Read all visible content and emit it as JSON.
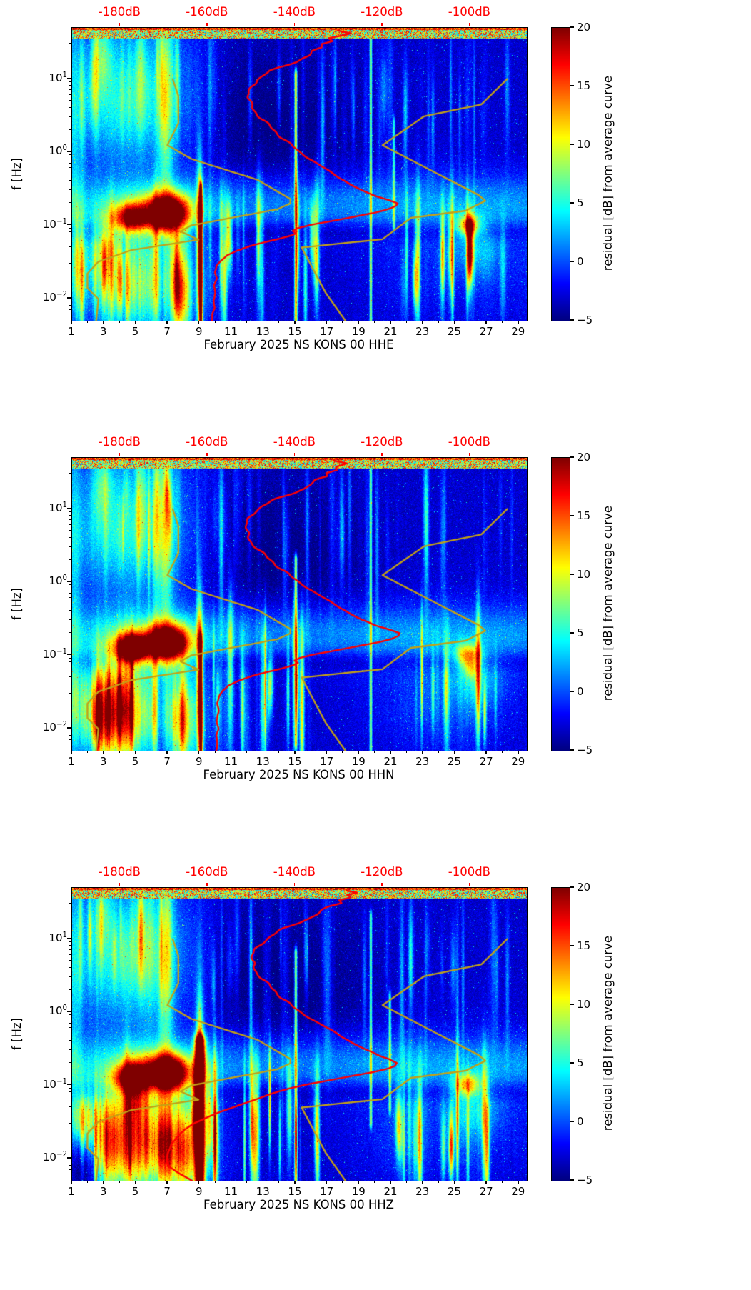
{
  "colors": {
    "background": "#ffffff",
    "axis": "#000000",
    "curve_red": "#ff0000",
    "curve_olive": "#c3a116",
    "db_axis_label_color": "#ff0000"
  },
  "colorbar": {
    "label": "residual [dB] from average curve",
    "tick_labels": [
      "20",
      "15",
      "10",
      "5",
      "0",
      "−5"
    ],
    "tick_values": [
      20,
      15,
      10,
      5,
      0,
      -5
    ],
    "vmin": -5,
    "vmax": 20,
    "colormap": "jet"
  },
  "axes": {
    "ylabel": "f [Hz]",
    "x_tick_labels": [
      "1",
      "3",
      "5",
      "7",
      "9",
      "11",
      "13",
      "15",
      "17",
      "19",
      "21",
      "23",
      "25",
      "27",
      "29"
    ],
    "y_tick_exponents": [
      "1",
      "0",
      "−1",
      "−2"
    ],
    "x_range_days": [
      1,
      29.5
    ],
    "f_range_hz": [
      0.005,
      50
    ],
    "db_axis": {
      "tick_labels": [
        "-180dB",
        "-160dB",
        "-140dB",
        "-120dB",
        "-100dB"
      ],
      "tick_values": [
        -180,
        -160,
        -140,
        -120,
        -100
      ],
      "range_db": [
        -191,
        -87
      ]
    }
  },
  "overlay_curves": {
    "olive_left_db_vs_hz": [
      [
        10,
        -168.0
      ],
      [
        5.9,
        -166.7
      ],
      [
        2.5,
        -166.7
      ],
      [
        1.25,
        -169.2
      ],
      [
        0.81,
        -163.7
      ],
      [
        0.42,
        -148.6
      ],
      [
        0.23,
        -141.1
      ],
      [
        0.2,
        -141.1
      ],
      [
        0.167,
        -144.0
      ],
      [
        0.1,
        -163.8
      ],
      [
        0.083,
        -166.2
      ],
      [
        0.064,
        -162.1
      ],
      [
        0.046,
        -177.5
      ],
      [
        0.032,
        -185.0
      ],
      [
        0.022,
        -187.5
      ],
      [
        0.014,
        -187.5
      ],
      [
        0.0099,
        -185.0
      ],
      [
        0.005,
        -185.5
      ]
    ],
    "olive_right_db_vs_hz": [
      [
        10,
        -91.5
      ],
      [
        4.5,
        -97.4
      ],
      [
        3.1,
        -110.5
      ],
      [
        1.25,
        -120.0
      ],
      [
        0.26,
        -98.0
      ],
      [
        0.217,
        -96.5
      ],
      [
        0.159,
        -101.0
      ],
      [
        0.127,
        -113.5
      ],
      [
        0.065,
        -120.0
      ],
      [
        0.05,
        -138.5
      ],
      [
        0.012,
        -133.0
      ],
      [
        0.005,
        -128.5
      ]
    ]
  },
  "heatmap_render": {
    "features": [
      {
        "d": 4.6,
        "dw": 3.0,
        "l": 0.95,
        "lw": 0.8,
        "a": 5.5
      },
      {
        "d": 4.2,
        "dw": 2.4,
        "l": 0.55,
        "lw": 0.5,
        "a": 3
      },
      {
        "d": 6.85,
        "dw": 0.35,
        "l": 0.75,
        "lw": 1.05,
        "a": 8.5
      },
      {
        "d": 5.3,
        "dw": 0.22,
        "l": 1.15,
        "lw": 0.65,
        "a": 5
      },
      {
        "d": 2.9,
        "dw": 0.45,
        "l": 1.35,
        "lw": 0.35,
        "a": 5
      },
      {
        "d": 1.15,
        "dw": 0.3,
        "l": 0.2,
        "lw": 1.6,
        "a": 4
      },
      {
        "d": 15,
        "dw": 40,
        "l": -0.72,
        "lw": 0.3,
        "a": 5
      },
      {
        "d": 15,
        "dw": 40,
        "l": -1.08,
        "lw": 0.1,
        "a": -2
      },
      {
        "d": 4.7,
        "dw": 0.7,
        "l": -0.9,
        "lw": 0.13,
        "a": 16
      },
      {
        "d": 7.0,
        "dw": 0.9,
        "l": -0.83,
        "lw": 0.17,
        "a": 24
      },
      {
        "d": 6.0,
        "dw": 1.9,
        "l": -0.86,
        "lw": 0.25,
        "a": 6
      },
      {
        "d": 25.8,
        "dw": 0.55,
        "l": -1.0,
        "lw": 0.11,
        "a": 11.5
      },
      {
        "d": 5.0,
        "dw": 2.6,
        "l": -1.78,
        "lw": 0.5,
        "a": 11,
        "s": 1
      },
      {
        "d": 3.0,
        "dw": 0.4,
        "l": -1.85,
        "lw": 0.5,
        "a": 7,
        "s": 1
      },
      {
        "d": 7.9,
        "dw": 0.5,
        "l": -1.95,
        "lw": 0.45,
        "a": 7,
        "s": 1
      },
      {
        "d": 2.0,
        "dw": 1.0,
        "l": -1.5,
        "lw": 0.4,
        "a": 6,
        "s": 1
      },
      {
        "d": 9.0,
        "dw": 0.13,
        "l": -1.4,
        "lw": 0.85,
        "a": 18
      },
      {
        "d": 15.5,
        "dw": 3.0,
        "l": 0.25,
        "lw": 0.85,
        "a": -1.8
      },
      {
        "d": 11.5,
        "dw": 1.6,
        "l": 0.5,
        "lw": 0.9,
        "a": -1.3
      },
      {
        "d": 24.8,
        "dw": 3.8,
        "l": -1.6,
        "lw": 0.5,
        "a": 2.5,
        "s": 1
      },
      {
        "d": 26.3,
        "dw": 1.2,
        "l": -1.35,
        "lw": 0.25,
        "a": 4
      }
    ],
    "stripe_zones": [
      {
        "d0": 9.4,
        "d1": 16.6,
        "l": -1.5,
        "lw": 0.55,
        "n": 22,
        "amax": 15
      },
      {
        "d0": 21.4,
        "d1": 28.3,
        "l": -1.55,
        "lw": 0.5,
        "n": 16,
        "amax": 13
      },
      {
        "d0": 8.6,
        "d1": 28.6,
        "l": 0.7,
        "lw": 0.6,
        "n": 44,
        "amax": 4.5
      },
      {
        "d0": 1.2,
        "d1": 8.4,
        "l": 1.0,
        "lw": 0.55,
        "n": 18,
        "amax": 6
      },
      {
        "d0": 1.2,
        "d1": 9.2,
        "l": -1.7,
        "lw": 0.5,
        "n": 14,
        "amax": 10
      }
    ]
  },
  "chart_data": [
    {
      "type": "heatmap",
      "xlabel": "February 2025 NS KONS 00 HHE",
      "ylabel": "f [Hz]",
      "colorbar_label": "residual [dB] from average curve",
      "x_range_days": [
        1,
        29.5
      ],
      "f_range_hz": [
        0.005,
        50
      ],
      "residual_range_db": [
        -5,
        20
      ],
      "db_axis_tick_values": [
        -180,
        -160,
        -140,
        -120,
        -100
      ],
      "seed": 101,
      "red_curve_db_vs_hz": [
        [
          46,
          -130
        ],
        [
          42,
          -127.5
        ],
        [
          39,
          -130
        ],
        [
          36,
          -132.5
        ],
        [
          33,
          -131.5
        ],
        [
          30,
          -134
        ],
        [
          27,
          -133.5
        ],
        [
          24,
          -136
        ],
        [
          21,
          -137
        ],
        [
          19,
          -138.5
        ],
        [
          17,
          -140
        ],
        [
          15,
          -142.5
        ],
        [
          13,
          -145.5
        ],
        [
          11,
          -147.5
        ],
        [
          9.5,
          -149
        ],
        [
          8,
          -149.8
        ],
        [
          6.8,
          -150.4
        ],
        [
          5.6,
          -150.7
        ],
        [
          4.6,
          -150.3
        ],
        [
          3.8,
          -149.4
        ],
        [
          3.1,
          -148.2
        ],
        [
          2.5,
          -146.6
        ],
        [
          2.0,
          -144.9
        ],
        [
          1.6,
          -143
        ],
        [
          1.3,
          -141.2
        ],
        [
          1.05,
          -139.4
        ],
        [
          0.85,
          -137.2
        ],
        [
          0.68,
          -134.6
        ],
        [
          0.55,
          -132.2
        ],
        [
          0.44,
          -129.6
        ],
        [
          0.36,
          -127.2
        ],
        [
          0.3,
          -124.8
        ],
        [
          0.255,
          -121.8
        ],
        [
          0.225,
          -118.8
        ],
        [
          0.2,
          -116.4
        ],
        [
          0.185,
          -116.8
        ],
        [
          0.17,
          -118.4
        ],
        [
          0.15,
          -121.8
        ],
        [
          0.132,
          -126.4
        ],
        [
          0.115,
          -131.6
        ],
        [
          0.102,
          -136.2
        ],
        [
          0.092,
          -139.4
        ],
        [
          0.084,
          -140.6
        ],
        [
          0.078,
          -139.8
        ],
        [
          0.073,
          -140.9
        ],
        [
          0.066,
          -143.6
        ],
        [
          0.059,
          -147
        ],
        [
          0.052,
          -150.4
        ],
        [
          0.045,
          -153.4
        ],
        [
          0.039,
          -155.6
        ],
        [
          0.033,
          -157
        ],
        [
          0.028,
          -157.9
        ],
        [
          0.023,
          -158.3
        ],
        [
          0.019,
          -158
        ],
        [
          0.015,
          -158.5
        ],
        [
          0.012,
          -158.2
        ],
        [
          0.0095,
          -158.7
        ],
        [
          0.0075,
          -158.4
        ],
        [
          0.006,
          -158.9
        ],
        [
          0.005,
          -159.1
        ]
      ],
      "features_extra": [
        {
          "d": 25.9,
          "dw": 0.25,
          "l": -1.02,
          "lw": 0.07,
          "a": 5
        },
        {
          "d": 3.1,
          "dw": 0.5,
          "l": -1.3,
          "lw": 0.3,
          "a": 6
        }
      ],
      "thin_lines": [
        {
          "d": 9.05,
          "a": 16,
          "l0": -2.31,
          "l1": -0.5,
          "w": 1.4
        },
        {
          "d": 15.0,
          "a": 17,
          "l0": -2.31,
          "l1": 1.05,
          "w": 1.4
        },
        {
          "d": 19.7,
          "a": 13,
          "l0": -2.31,
          "l1": 1.6,
          "w": 1.2
        },
        {
          "d": 21.15,
          "a": 8,
          "l0": -1.0,
          "l1": 0.4,
          "w": 1.2
        }
      ]
    },
    {
      "type": "heatmap",
      "xlabel": "February 2025 NS KONS 00 HHN",
      "ylabel": "f [Hz]",
      "colorbar_label": "residual [dB] from average curve",
      "x_range_days": [
        1,
        29.5
      ],
      "f_range_hz": [
        0.005,
        50
      ],
      "residual_range_db": [
        -5,
        20
      ],
      "db_axis_tick_values": [
        -180,
        -160,
        -140,
        -120,
        -100
      ],
      "seed": 202,
      "red_curve_db_vs_hz": [
        [
          46,
          -131
        ],
        [
          42,
          -128.5
        ],
        [
          38,
          -131
        ],
        [
          34,
          -130.5
        ],
        [
          31,
          -133
        ],
        [
          28,
          -132.5
        ],
        [
          25,
          -135
        ],
        [
          22,
          -136.5
        ],
        [
          19,
          -138
        ],
        [
          16,
          -141
        ],
        [
          13.5,
          -144.5
        ],
        [
          11,
          -147.5
        ],
        [
          9,
          -149.5
        ],
        [
          7.5,
          -150.5
        ],
        [
          6.2,
          -151
        ],
        [
          5.1,
          -151.2
        ],
        [
          4.2,
          -150.8
        ],
        [
          3.4,
          -149.8
        ],
        [
          2.75,
          -148.3
        ],
        [
          2.2,
          -146.5
        ],
        [
          1.75,
          -144.4
        ],
        [
          1.4,
          -142.3
        ],
        [
          1.12,
          -140.3
        ],
        [
          0.9,
          -138
        ],
        [
          0.72,
          -135.4
        ],
        [
          0.58,
          -132.8
        ],
        [
          0.47,
          -130.2
        ],
        [
          0.38,
          -127.6
        ],
        [
          0.31,
          -125
        ],
        [
          0.26,
          -121.8
        ],
        [
          0.228,
          -118.6
        ],
        [
          0.202,
          -116
        ],
        [
          0.186,
          -116.2
        ],
        [
          0.17,
          -117.8
        ],
        [
          0.152,
          -121
        ],
        [
          0.134,
          -125.6
        ],
        [
          0.117,
          -130.8
        ],
        [
          0.103,
          -135.6
        ],
        [
          0.093,
          -138.8
        ],
        [
          0.085,
          -140.2
        ],
        [
          0.079,
          -139.4
        ],
        [
          0.073,
          -140.6
        ],
        [
          0.066,
          -143.2
        ],
        [
          0.059,
          -146.6
        ],
        [
          0.052,
          -150
        ],
        [
          0.045,
          -153
        ],
        [
          0.039,
          -155.2
        ],
        [
          0.033,
          -156.6
        ],
        [
          0.027,
          -157.4
        ],
        [
          0.022,
          -157.8
        ],
        [
          0.017,
          -157.5
        ],
        [
          0.013,
          -157.9
        ],
        [
          0.01,
          -157.6
        ],
        [
          0.008,
          -158
        ],
        [
          0.0063,
          -157.7
        ],
        [
          0.005,
          -158.1
        ]
      ],
      "features_extra": [
        {
          "d": 2.3,
          "dw": 0.8,
          "l": -1.9,
          "lw": 0.4,
          "a": 8,
          "s": 1
        },
        {
          "d": 26.0,
          "dw": 0.3,
          "l": -1.18,
          "lw": 0.1,
          "a": 6
        },
        {
          "d": 4.9,
          "dw": 0.6,
          "l": -0.92,
          "lw": 0.12,
          "a": 8
        }
      ],
      "thin_lines": [
        {
          "d": 9.05,
          "a": 13,
          "l0": -2.31,
          "l1": -0.8,
          "w": 1.4
        },
        {
          "d": 15.0,
          "a": 15,
          "l0": -2.2,
          "l1": 0.3,
          "w": 1.4
        },
        {
          "d": 19.7,
          "a": 12,
          "l0": -2.31,
          "l1": 1.5,
          "w": 1.2
        }
      ]
    },
    {
      "type": "heatmap",
      "xlabel": "February 2025 NS KONS 00 HHZ",
      "ylabel": "f [Hz]",
      "colorbar_label": "residual [dB] from average curve",
      "x_range_days": [
        1,
        29.5
      ],
      "f_range_hz": [
        0.005,
        50
      ],
      "residual_range_db": [
        -5,
        20
      ],
      "db_axis_tick_values": [
        -180,
        -160,
        -140,
        -120,
        -100
      ],
      "seed": 303,
      "red_curve_db_vs_hz": [
        [
          46,
          -128
        ],
        [
          43,
          -126
        ],
        [
          40,
          -128.5
        ],
        [
          37,
          -127.5
        ],
        [
          34,
          -130
        ],
        [
          31,
          -129.5
        ],
        [
          28,
          -132
        ],
        [
          25,
          -133.5
        ],
        [
          22,
          -135
        ],
        [
          19,
          -137
        ],
        [
          16,
          -140
        ],
        [
          13.5,
          -143
        ],
        [
          11,
          -145.5
        ],
        [
          9,
          -147.5
        ],
        [
          7.5,
          -148.8
        ],
        [
          6.2,
          -149.6
        ],
        [
          5.1,
          -149.9
        ],
        [
          4.2,
          -149.5
        ],
        [
          3.4,
          -148.6
        ],
        [
          2.75,
          -147.2
        ],
        [
          2.2,
          -145.6
        ],
        [
          1.75,
          -143.8
        ],
        [
          1.4,
          -141.9
        ],
        [
          1.12,
          -140
        ],
        [
          0.9,
          -137.6
        ],
        [
          0.72,
          -134.8
        ],
        [
          0.58,
          -132
        ],
        [
          0.47,
          -129.4
        ],
        [
          0.38,
          -126.8
        ],
        [
          0.31,
          -124
        ],
        [
          0.26,
          -121
        ],
        [
          0.228,
          -118.4
        ],
        [
          0.202,
          -116.6
        ],
        [
          0.186,
          -117
        ],
        [
          0.17,
          -118.8
        ],
        [
          0.152,
          -122.4
        ],
        [
          0.134,
          -127.2
        ],
        [
          0.117,
          -132.4
        ],
        [
          0.103,
          -137.2
        ],
        [
          0.092,
          -141
        ],
        [
          0.083,
          -143.8
        ],
        [
          0.075,
          -146
        ],
        [
          0.067,
          -148.2
        ],
        [
          0.059,
          -150.8
        ],
        [
          0.051,
          -153.8
        ],
        [
          0.044,
          -157
        ],
        [
          0.037,
          -160
        ],
        [
          0.031,
          -162.8
        ],
        [
          0.025,
          -165.2
        ],
        [
          0.02,
          -167
        ],
        [
          0.016,
          -168.2
        ],
        [
          0.012,
          -169
        ],
        [
          0.0095,
          -169.5
        ],
        [
          0.0078,
          -168.8
        ],
        [
          0.0065,
          -166.8
        ],
        [
          0.0055,
          -164.8
        ],
        [
          0.005,
          -163.6
        ]
      ],
      "features_extra": [
        {
          "d": 6.6,
          "dw": 0.8,
          "l": -1.8,
          "lw": 0.45,
          "a": 8,
          "s": 1
        },
        {
          "d": 9.0,
          "dw": 0.22,
          "l": -1.3,
          "lw": 0.95,
          "a": 12
        },
        {
          "d": 1.6,
          "dw": 0.9,
          "l": -1.85,
          "lw": 0.45,
          "a": -9
        },
        {
          "d": 1.7,
          "dw": 0.5,
          "l": -1.5,
          "lw": 0.25,
          "a": 8
        },
        {
          "d": 4.9,
          "dw": 0.5,
          "l": -1.1,
          "lw": 0.3,
          "a": 9
        }
      ],
      "thin_lines": [
        {
          "d": 9.0,
          "a": 20,
          "l0": -2.31,
          "l1": -0.4,
          "w": 5
        },
        {
          "d": 15.0,
          "a": 14,
          "l0": -2.31,
          "l1": 0.8,
          "w": 1.4
        },
        {
          "d": 19.7,
          "a": 12,
          "l0": -1.5,
          "l1": 1.3,
          "w": 1.2
        },
        {
          "d": 20.9,
          "a": 10,
          "l0": -1.3,
          "l1": 0.2,
          "w": 1.2
        }
      ]
    }
  ]
}
